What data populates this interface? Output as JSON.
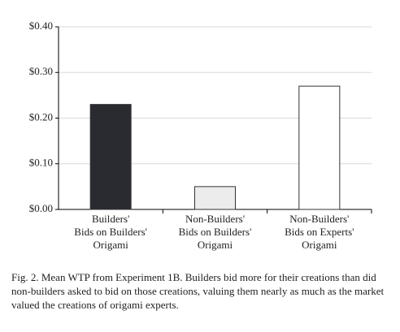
{
  "chart_data": {
    "type": "bar",
    "categories": [
      [
        "Builders'",
        "Bids on Builders'",
        "Origami"
      ],
      [
        "Non-Builders'",
        "Bids on Builders'",
        "Origami"
      ],
      [
        "Non-Builders'",
        "Bids on Experts'",
        "Origami"
      ]
    ],
    "values": [
      0.23,
      0.05,
      0.27
    ],
    "colors": [
      "#2a2a31",
      "#ececec",
      "#ffffff"
    ],
    "ylim": [
      0,
      0.4
    ],
    "yticks": [
      {
        "value": 0,
        "label": "$0.00"
      },
      {
        "value": 0.1,
        "label": "$0.10"
      },
      {
        "value": 0.2,
        "label": "$0.20"
      },
      {
        "value": 0.3,
        "label": "$0.30"
      },
      {
        "value": 0.4,
        "label": "$0.40"
      }
    ],
    "grid": true,
    "caption": "Fig. 2. Mean WTP from Experiment 1B. Builders bid more for their creations than did non-builders asked to bid on those creations, valuing them nearly as much as the market valued the creations of origami experts."
  }
}
